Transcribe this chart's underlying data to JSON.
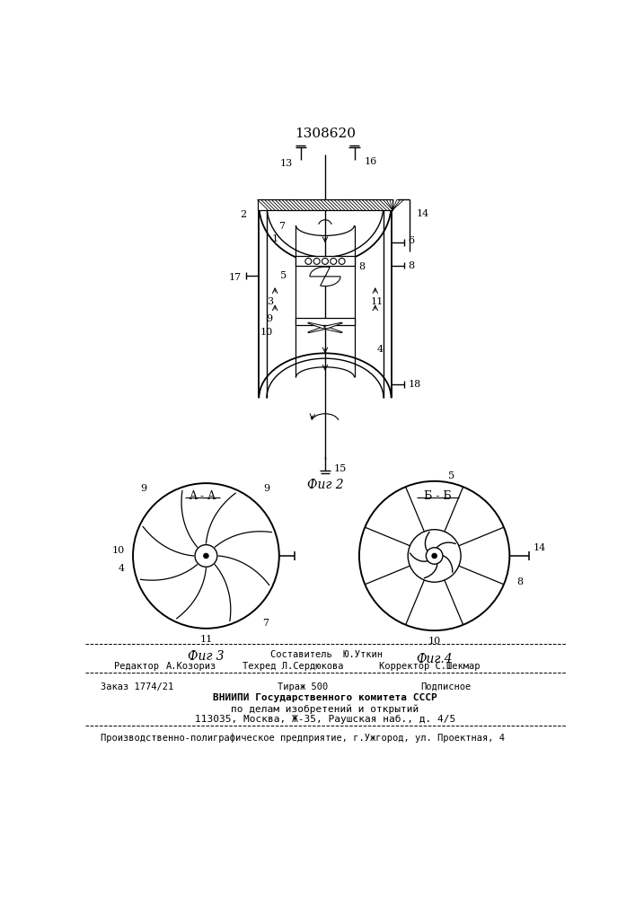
{
  "title": "1308620",
  "fig2_label": "Фиг 2",
  "fig3_label": "Фиг 3",
  "fig4_label": "Фиг.4",
  "sec_aa": "A - A",
  "sec_bb": "Б-Б",
  "footer_line1": "Составитель  Ю.Уткин",
  "footer_editor_label": "Редактор",
  "footer_editor_name": "А.Козориз",
  "footer_techred": "Техред Л.Сердюкова",
  "footer_corrector": "Корректор С.Шекмар",
  "footer_order": "Заказ 1774/21",
  "footer_tirazh": "Тираж 500",
  "footer_podp": "Подписное",
  "footer_vniipи": "ВНИИПИ Государственного комитета СССР",
  "footer_po_delam": "по делам изобретений и открытий",
  "footer_addr": "113035, Москва, Ж-35, Раушская наб., д. 4/5",
  "footer_prod": "Производственно-полиграфическое предприятие, г.Ужгород, ул. Проектная, 4",
  "bg_color": "#ffffff",
  "line_color": "#000000"
}
